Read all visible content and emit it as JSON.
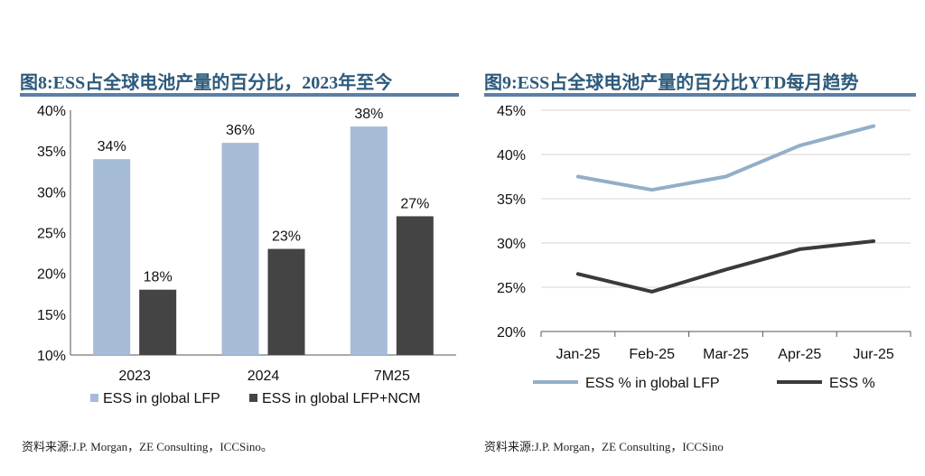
{
  "left": {
    "title": "图8:ESS占全球电池产量的百分比，2023年至今",
    "source": "资料来源:J.P. Morgan，ZE Consulting，ICCSino。"
  },
  "right": {
    "title": "图9:ESS占全球电池产量的百分比YTD每月趋势",
    "source": "资料来源:J.P. Morgan，ZE Consulting，ICCSino"
  },
  "colors": {
    "blue": "#a6bcd6",
    "dark": "#444444",
    "line_blue": "#93aec8",
    "line_dark": "#3a3a3a"
  },
  "chart_data": [
    {
      "type": "bar",
      "categories": [
        "2023",
        "2024",
        "7M25"
      ],
      "series": [
        {
          "name": "ESS in global LFP",
          "values": [
            34,
            36,
            38
          ],
          "labels": [
            "34%",
            "36%",
            "38%"
          ]
        },
        {
          "name": "ESS in global LFP+NCM",
          "values": [
            18,
            23,
            27
          ],
          "labels": [
            "18%",
            "23%",
            "27%"
          ]
        }
      ],
      "ylim": [
        10,
        40
      ],
      "yticks": [
        "10%",
        "15%",
        "20%",
        "25%",
        "30%",
        "35%",
        "40%"
      ],
      "ytick_values": [
        10,
        15,
        20,
        25,
        30,
        35,
        40
      ],
      "grid": false,
      "legend_position": "bottom"
    },
    {
      "type": "line",
      "categories": [
        "Jan-25",
        "Feb-25",
        "Mar-25",
        "Apr-25",
        "Jur-25"
      ],
      "series": [
        {
          "name": "ESS % in global LFP",
          "values": [
            37.5,
            36.0,
            37.5,
            41.0,
            43.2
          ]
        },
        {
          "name": "ESS %",
          "values": [
            26.5,
            24.5,
            27.0,
            29.3,
            30.2
          ]
        }
      ],
      "ylim": [
        20,
        45
      ],
      "yticks": [
        "20%",
        "25%",
        "30%",
        "35%",
        "40%",
        "45%"
      ],
      "ytick_values": [
        20,
        25,
        30,
        35,
        40,
        45
      ],
      "grid": true,
      "legend_position": "bottom"
    }
  ]
}
